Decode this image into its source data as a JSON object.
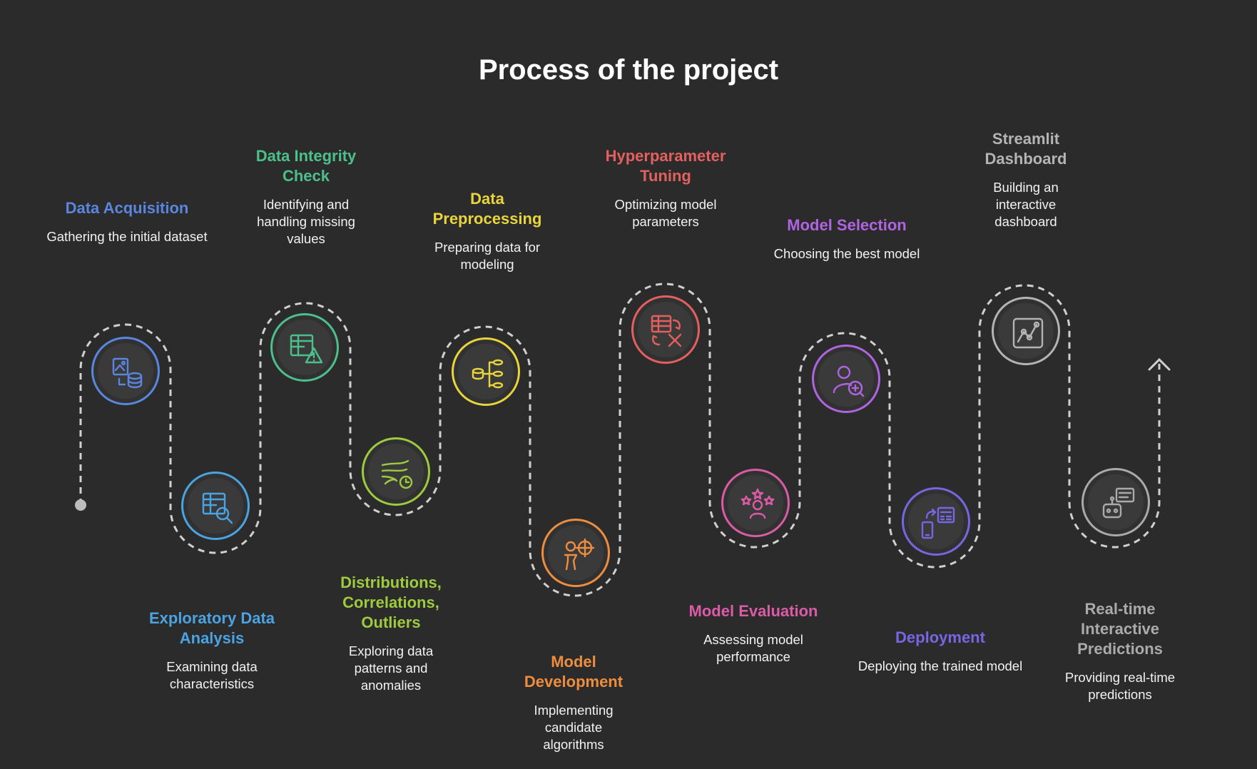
{
  "title": "Process of the project",
  "steps": [
    {
      "name": "Data Acquisition",
      "desc": "Gathering the initial dataset",
      "color": "#5a86e0",
      "icon": "image-database-icon",
      "slug": "data-acquisition"
    },
    {
      "name": "Exploratory Data Analysis",
      "desc": "Examining data characteristics",
      "color": "#4aa3e2",
      "icon": "table-search-icon",
      "slug": "exploratory-data-analysis"
    },
    {
      "name": "Data Integrity Check",
      "desc": "Identifying and handling missing values",
      "color": "#4cc08a",
      "icon": "table-warning-icon",
      "slug": "data-integrity-check"
    },
    {
      "name": "Distributions, Correlations, Outliers",
      "desc": "Exploring data patterns and anomalies",
      "color": "#9ecb3e",
      "icon": "wind-clock-icon",
      "slug": "distributions-correlations-outliers"
    },
    {
      "name": "Data Preprocessing",
      "desc": "Preparing data for modeling",
      "color": "#e8d43c",
      "icon": "database-hierarchy-icon",
      "slug": "data-preprocessing"
    },
    {
      "name": "Model Development",
      "desc": "Implementing candidate algorithms",
      "color": "#ee8d3e",
      "icon": "person-target-icon",
      "slug": "model-development"
    },
    {
      "name": "Hyperparameter Tuning",
      "desc": "Optimizing model parameters",
      "color": "#e4605e",
      "icon": "table-refresh-x-icon",
      "slug": "hyperparameter-tuning"
    },
    {
      "name": "Model Evaluation",
      "desc": "Assessing model performance",
      "color": "#dc5ba6",
      "icon": "person-stars-icon",
      "slug": "model-evaluation"
    },
    {
      "name": "Model Selection",
      "desc": "Choosing the best model",
      "color": "#b064e2",
      "icon": "user-magnifier-icon",
      "slug": "model-selection"
    },
    {
      "name": "Deployment",
      "desc": "Deploying the trained model",
      "color": "#7766e4",
      "icon": "phone-calculator-icon",
      "slug": "deployment"
    },
    {
      "name": "Streamlit Dashboard",
      "desc": "Building an interactive dashboard",
      "color": "#b4b4b4",
      "icon": "dashboard-chart-icon",
      "slug": "streamlit-dashboard"
    },
    {
      "name": "Real-time Interactive Predictions",
      "desc": "Providing real-time predictions",
      "color": "#aaaaaa",
      "icon": "robot-chat-icon",
      "slug": "realtime-interactive-predictions"
    }
  ]
}
